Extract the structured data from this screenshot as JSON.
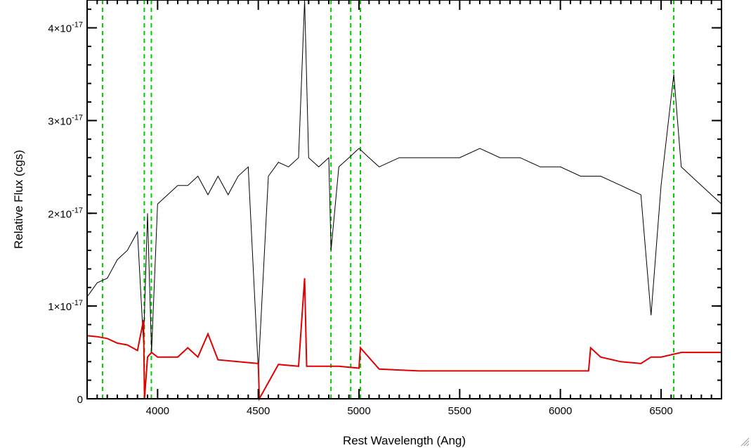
{
  "chart_data": {
    "type": "line",
    "title": "",
    "xlabel": "Rest Wavelength (Ang)",
    "ylabel": "Relative Flux (cgs)",
    "xlim": [
      3650,
      6800
    ],
    "ylim": [
      0,
      4.3e-17
    ],
    "x_ticks": [
      4000,
      4500,
      5000,
      5500,
      6000,
      6500
    ],
    "x_tick_labels": [
      "4000",
      "4500",
      "5000",
      "5500",
      "6000",
      "6500"
    ],
    "y_ticks": [
      0,
      1e-17,
      2e-17,
      3e-17,
      4e-17
    ],
    "y_tick_labels": [
      {
        "mantissa": "0",
        "exponent": ""
      },
      {
        "mantissa": "1×10",
        "exponent": "-17"
      },
      {
        "mantissa": "2×10",
        "exponent": "-17"
      },
      {
        "mantissa": "3×10",
        "exponent": "-17"
      },
      {
        "mantissa": "4×10",
        "exponent": "-17"
      }
    ],
    "grid": false,
    "reference_lines_x": [
      3727,
      3934,
      3969,
      4861,
      4959,
      5007,
      6563
    ],
    "colors": {
      "spectrum": "#000000",
      "error": "#e00000",
      "reference": "#00cc00"
    },
    "series": [
      {
        "role": "spectrum",
        "x": [
          3650,
          3700,
          3750,
          3800,
          3850,
          3900,
          3930,
          3950,
          3970,
          4000,
          4050,
          4100,
          4150,
          4200,
          4250,
          4300,
          4350,
          4400,
          4450,
          4500,
          4550,
          4600,
          4650,
          4700,
          4730,
          4750,
          4800,
          4850,
          4861,
          4900,
          4950,
          5000,
          5050,
          5100,
          5200,
          5300,
          5400,
          5500,
          5600,
          5700,
          5800,
          5900,
          6000,
          6100,
          6200,
          6300,
          6400,
          6450,
          6500,
          6563,
          6600,
          6700,
          6800
        ],
        "y": [
          1.1e-17,
          1.25e-17,
          1.3e-17,
          1.5e-17,
          1.6e-17,
          1.8e-17,
          6e-18,
          2e-17,
          5e-18,
          2.1e-17,
          2.2e-17,
          2.3e-17,
          2.3e-17,
          2.4e-17,
          2.2e-17,
          2.4e-17,
          2.2e-17,
          2.4e-17,
          2.5e-17,
          3e-18,
          2.4e-17,
          2.55e-17,
          2.5e-17,
          2.6e-17,
          4.3e-17,
          2.6e-17,
          2.5e-17,
          2.6e-17,
          1.6e-17,
          2.5e-17,
          2.6e-17,
          2.7e-17,
          2.6e-17,
          2.5e-17,
          2.6e-17,
          2.6e-17,
          2.6e-17,
          2.6e-17,
          2.7e-17,
          2.6e-17,
          2.6e-17,
          2.5e-17,
          2.5e-17,
          2.4e-17,
          2.4e-17,
          2.3e-17,
          2.2e-17,
          9e-18,
          2.3e-17,
          3.5e-17,
          2.5e-17,
          2.3e-17,
          2.1e-17
        ]
      },
      {
        "role": "error",
        "x": [
          3650,
          3700,
          3750,
          3800,
          3850,
          3900,
          3930,
          3935,
          3950,
          3970,
          4000,
          4100,
          4150,
          4200,
          4250,
          4300,
          4400,
          4500,
          4505,
          4600,
          4700,
          4730,
          4740,
          4800,
          4900,
          5000,
          5007,
          5100,
          5200,
          5300,
          5400,
          5500,
          5600,
          5700,
          5800,
          5900,
          6000,
          6100,
          6140,
          6150,
          6200,
          6300,
          6400,
          6450,
          6500,
          6600,
          6700,
          6800
        ],
        "y": [
          6.8e-18,
          6.7e-18,
          6.5e-18,
          6e-18,
          5.8e-18,
          5.2e-18,
          8.5e-18,
          -1e-18,
          4.5e-18,
          5e-18,
          4.5e-18,
          4.5e-18,
          5.5e-18,
          4.5e-18,
          7e-18,
          4.2e-18,
          4e-18,
          3.8e-18,
          -1e-18,
          3.7e-18,
          3.5e-18,
          1.3e-17,
          3.5e-18,
          3.5e-18,
          3.5e-18,
          3.3e-18,
          5.5e-18,
          3.2e-18,
          3.1e-18,
          3e-18,
          3e-18,
          3e-18,
          3e-18,
          3e-18,
          3e-18,
          3e-18,
          3e-18,
          3e-18,
          3e-18,
          5.5e-18,
          4.5e-18,
          4e-18,
          3.8e-18,
          4.5e-18,
          4.5e-18,
          5e-18,
          5e-18,
          5e-18
        ]
      }
    ]
  }
}
